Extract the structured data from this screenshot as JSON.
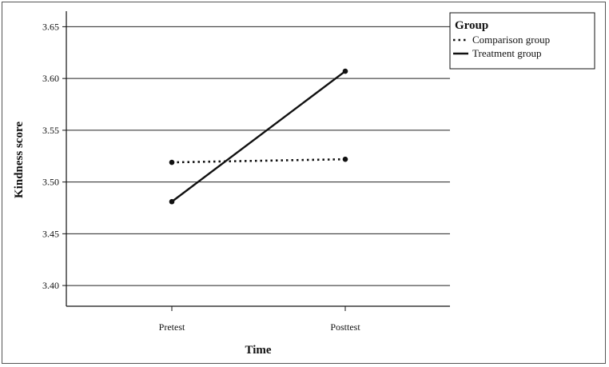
{
  "chart_data": {
    "type": "line",
    "title": "",
    "xlabel": "Time",
    "ylabel": "Kindness score",
    "categories": [
      "Pretest",
      "Posttest"
    ],
    "ylim": [
      3.38,
      3.665
    ],
    "yticks": [
      "3.40",
      "3.45",
      "3.50",
      "3.55",
      "3.60",
      "3.65"
    ],
    "grid": "horizontal",
    "legend": {
      "title": "Group",
      "placement": "top-right"
    },
    "series": [
      {
        "name": "Comparison group",
        "values": [
          3.519,
          3.522
        ],
        "style": "dotted",
        "color": "#111111"
      },
      {
        "name": "Treatment group",
        "values": [
          3.481,
          3.607
        ],
        "style": "solid",
        "color": "#111111"
      }
    ]
  }
}
